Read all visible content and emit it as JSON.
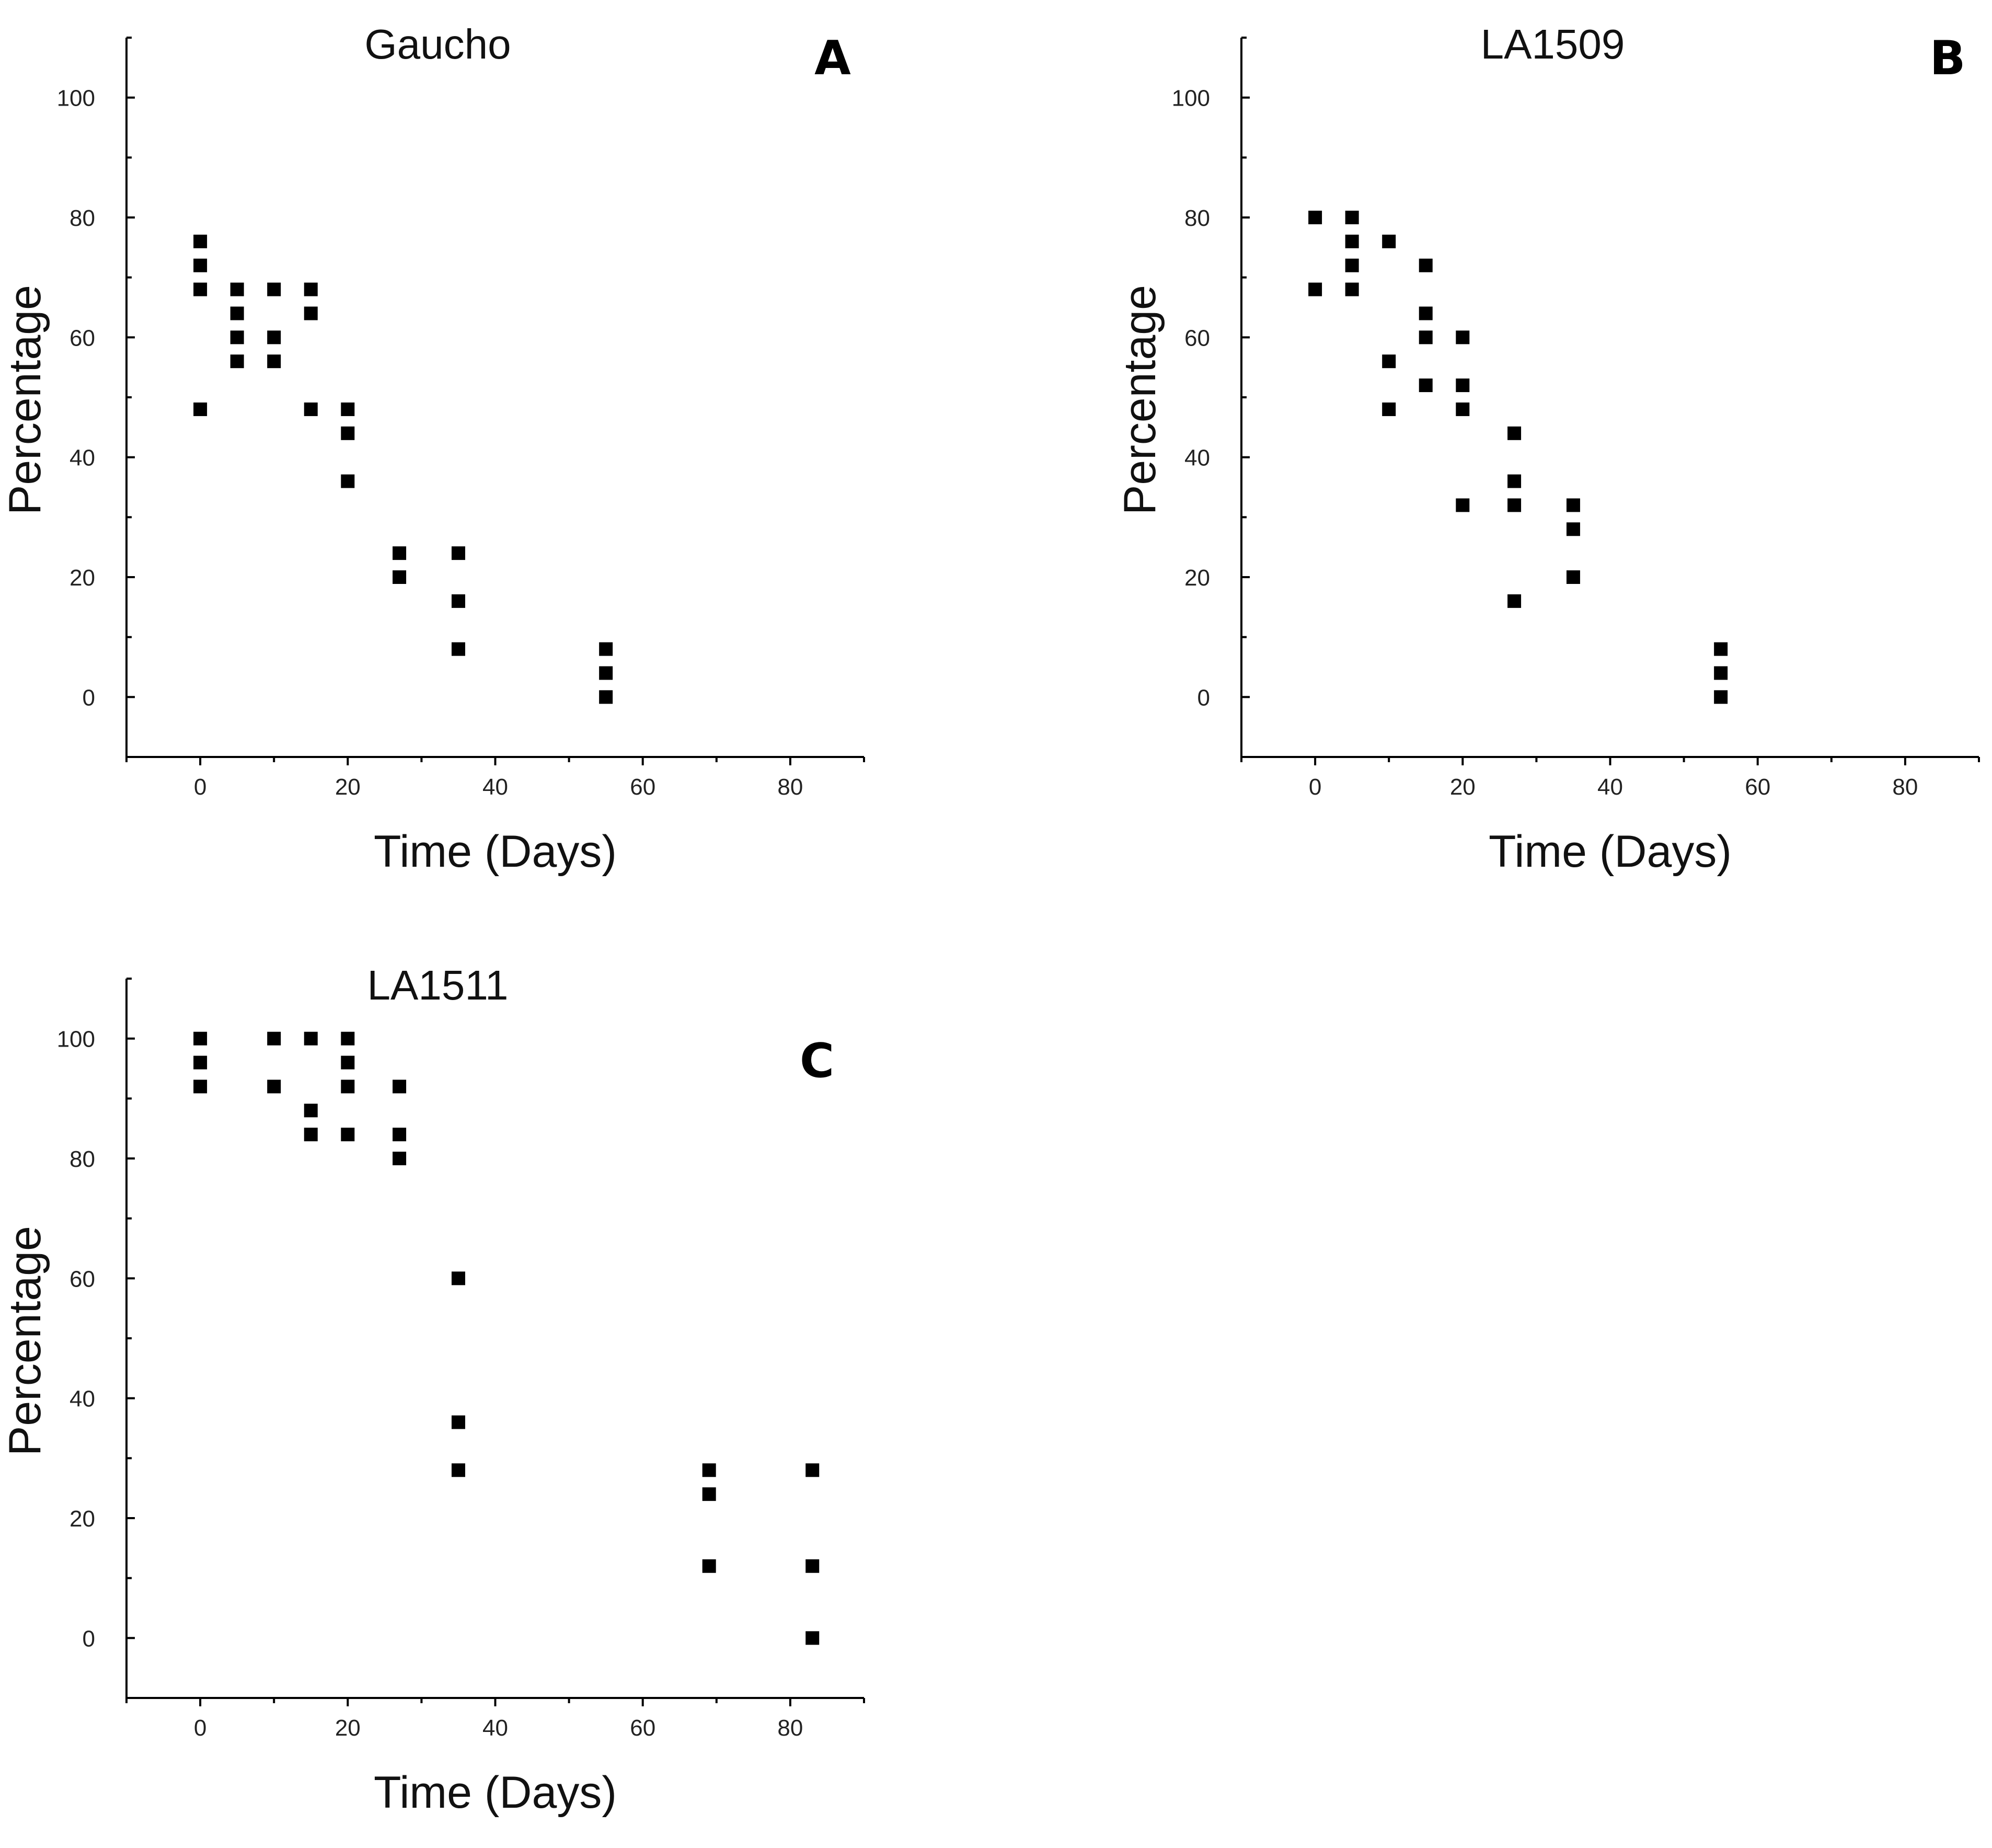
{
  "colors": {
    "marker": "#000000",
    "axis": "#000000",
    "background": "#ffffff"
  },
  "chart_data": [
    {
      "type": "scatter",
      "panel": "A",
      "title": "Gaucho",
      "xlabel": "Time (Days)",
      "ylabel": "Percentage",
      "xlim": [
        -10,
        90
      ],
      "ylim": [
        -10,
        110
      ],
      "xticks": [
        0,
        20,
        40,
        60,
        80
      ],
      "yticks": [
        0,
        20,
        40,
        60,
        80,
        100
      ],
      "grid": false,
      "points": [
        {
          "x": 0,
          "y": 76
        },
        {
          "x": 0,
          "y": 72
        },
        {
          "x": 0,
          "y": 68
        },
        {
          "x": 0,
          "y": 48
        },
        {
          "x": 5,
          "y": 68
        },
        {
          "x": 5,
          "y": 64
        },
        {
          "x": 5,
          "y": 60
        },
        {
          "x": 5,
          "y": 56
        },
        {
          "x": 10,
          "y": 68
        },
        {
          "x": 10,
          "y": 60
        },
        {
          "x": 10,
          "y": 56
        },
        {
          "x": 15,
          "y": 68
        },
        {
          "x": 15,
          "y": 64
        },
        {
          "x": 15,
          "y": 48
        },
        {
          "x": 20,
          "y": 48
        },
        {
          "x": 20,
          "y": 44
        },
        {
          "x": 20,
          "y": 36
        },
        {
          "x": 27,
          "y": 24
        },
        {
          "x": 27,
          "y": 20
        },
        {
          "x": 35,
          "y": 24
        },
        {
          "x": 35,
          "y": 16
        },
        {
          "x": 35,
          "y": 8
        },
        {
          "x": 55,
          "y": 8
        },
        {
          "x": 55,
          "y": 4
        },
        {
          "x": 55,
          "y": 0
        }
      ]
    },
    {
      "type": "scatter",
      "panel": "B",
      "title": "LA1509",
      "xlabel": "Time (Days)",
      "ylabel": "Percentage",
      "xlim": [
        -10,
        90
      ],
      "ylim": [
        -10,
        110
      ],
      "xticks": [
        0,
        20,
        40,
        60,
        80
      ],
      "yticks": [
        0,
        20,
        40,
        60,
        80,
        100
      ],
      "grid": false,
      "points": [
        {
          "x": 0,
          "y": 80
        },
        {
          "x": 0,
          "y": 68
        },
        {
          "x": 5,
          "y": 80
        },
        {
          "x": 5,
          "y": 76
        },
        {
          "x": 5,
          "y": 72
        },
        {
          "x": 5,
          "y": 68
        },
        {
          "x": 10,
          "y": 76
        },
        {
          "x": 10,
          "y": 56
        },
        {
          "x": 10,
          "y": 48
        },
        {
          "x": 15,
          "y": 72
        },
        {
          "x": 15,
          "y": 64
        },
        {
          "x": 15,
          "y": 60
        },
        {
          "x": 15,
          "y": 52
        },
        {
          "x": 20,
          "y": 60
        },
        {
          "x": 20,
          "y": 52
        },
        {
          "x": 20,
          "y": 48
        },
        {
          "x": 20,
          "y": 32
        },
        {
          "x": 27,
          "y": 44
        },
        {
          "x": 27,
          "y": 36
        },
        {
          "x": 27,
          "y": 32
        },
        {
          "x": 27,
          "y": 16
        },
        {
          "x": 35,
          "y": 32
        },
        {
          "x": 35,
          "y": 28
        },
        {
          "x": 35,
          "y": 20
        },
        {
          "x": 55,
          "y": 8
        },
        {
          "x": 55,
          "y": 4
        },
        {
          "x": 55,
          "y": 0
        }
      ]
    },
    {
      "type": "scatter",
      "panel": "C",
      "title": "LA1511",
      "xlabel": "Time (Days)",
      "ylabel": "Percentage",
      "xlim": [
        -10,
        90
      ],
      "ylim": [
        -10,
        110
      ],
      "xticks": [
        0,
        20,
        40,
        60,
        80
      ],
      "yticks": [
        0,
        20,
        40,
        60,
        80,
        100
      ],
      "grid": false,
      "points": [
        {
          "x": 0,
          "y": 100
        },
        {
          "x": 0,
          "y": 96
        },
        {
          "x": 0,
          "y": 92
        },
        {
          "x": 10,
          "y": 100
        },
        {
          "x": 10,
          "y": 92
        },
        {
          "x": 15,
          "y": 100
        },
        {
          "x": 15,
          "y": 88
        },
        {
          "x": 15,
          "y": 84
        },
        {
          "x": 20,
          "y": 100
        },
        {
          "x": 20,
          "y": 96
        },
        {
          "x": 20,
          "y": 92
        },
        {
          "x": 20,
          "y": 84
        },
        {
          "x": 27,
          "y": 92
        },
        {
          "x": 27,
          "y": 84
        },
        {
          "x": 27,
          "y": 80
        },
        {
          "x": 35,
          "y": 60
        },
        {
          "x": 35,
          "y": 36
        },
        {
          "x": 35,
          "y": 28
        },
        {
          "x": 69,
          "y": 28
        },
        {
          "x": 69,
          "y": 24
        },
        {
          "x": 69,
          "y": 12
        },
        {
          "x": 83,
          "y": 28
        },
        {
          "x": 83,
          "y": 12
        },
        {
          "x": 83,
          "y": 0
        }
      ]
    }
  ]
}
